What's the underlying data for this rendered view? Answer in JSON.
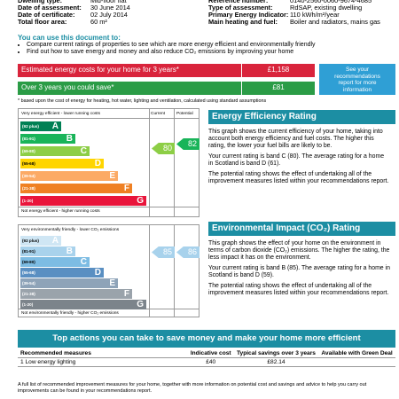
{
  "details": {
    "left": [
      {
        "label": "Dwelling type:",
        "value": "Mid-floor flat"
      },
      {
        "label": "Date of assessment:",
        "value": "30 June 2014"
      },
      {
        "label": "Date of certificate:",
        "value": "02 July 2014"
      },
      {
        "label": "Total floor area:",
        "value": "60 m²"
      }
    ],
    "right": [
      {
        "label": "Reference number:",
        "value": "0140-2560-0060-9674-4685"
      },
      {
        "label": "Type of assessment:",
        "value": "RdSAP, existing dwelling"
      },
      {
        "label": "Primary Energy Indicator:",
        "value": "110 kWh/m²/year"
      },
      {
        "label": "Main heating and fuel:",
        "value": "Boiler and radiators, mains gas"
      }
    ]
  },
  "uses": {
    "title": "You can use this document to:",
    "items": [
      "Compare current ratings of properties to see which are more energy efficient and environmentally friendly",
      "Find out how to save energy and money and also reduce CO₂ emissions by improving your home"
    ]
  },
  "costs": {
    "estimated": {
      "label": "Estimated energy costs for your home for 3 years*",
      "value": "£1,158"
    },
    "saving": {
      "label": "Over 3 years you could save*",
      "value": "£81"
    },
    "note": "See your recommendations report for more information",
    "footnote": "* based upon the cost of energy for heating, hot water, lighting and ventilation, calculated using standard assumptions"
  },
  "efficiency": {
    "chart": {
      "top": "Very energy efficient - lower running costs",
      "bottom": "Not energy efficient - higher running costs",
      "current_label": "Current",
      "potential_label": "Potential",
      "bands": [
        {
          "range": "(92 plus)",
          "letter": "A"
        },
        {
          "range": "(81-91)",
          "letter": "B"
        },
        {
          "range": "(69-80)",
          "letter": "C"
        },
        {
          "range": "(55-68)",
          "letter": "D"
        },
        {
          "range": "(39-54)",
          "letter": "E"
        },
        {
          "range": "(21-38)",
          "letter": "F"
        },
        {
          "range": "(1-20)",
          "letter": "G"
        }
      ],
      "current": 80,
      "potential": 82
    },
    "title": "Energy Efficiency Rating",
    "paragraphs": [
      "This graph shows the current efficiency of your home, taking into account both energy efficiency and fuel costs. The higher this rating, the lower your fuel bills are likely to be.",
      "Your current rating is band C (80). The average rating for a home in Scotland is band D (61).",
      "The potential rating shows the effect of undertaking all of the improvement measures listed within your recommendations report."
    ]
  },
  "impact": {
    "chart": {
      "top": "Very environmentally friendly - lower CO₂ emissions",
      "bottom": "Not environmentally friendly - higher CO₂ emissions",
      "bands": [
        {
          "range": "(92 plus)",
          "letter": "A"
        },
        {
          "range": "(81-91)",
          "letter": "B"
        },
        {
          "range": "(69-80)",
          "letter": "C"
        },
        {
          "range": "(55-68)",
          "letter": "D"
        },
        {
          "range": "(39-54)",
          "letter": "E"
        },
        {
          "range": "(21-38)",
          "letter": "F"
        },
        {
          "range": "(1-20)",
          "letter": "G"
        }
      ],
      "current": 85,
      "potential": 86
    },
    "title": "Environmental Impact (CO₂) Rating",
    "paragraphs": [
      "This graph shows the effect of your home on the environment in terms of carbon dioxide (CO₂) emissions. The higher the rating, the less impact it has on the environment.",
      "Your current rating is band B (85). The average rating for a home in Scotland is band D (59).",
      "The potential rating shows the effect of undertaking all of the improvement measures listed within your recommendations report."
    ]
  },
  "actions": {
    "title": "Top actions you can take to save money and make your home more efficient",
    "table": {
      "header": [
        "Recommended measures",
        "Indicative cost",
        "Typical savings over 3 years",
        "Available with Green Deal"
      ],
      "rows": [
        [
          "1 Low energy lighting",
          "£40",
          "£82.14"
        ]
      ]
    }
  },
  "footer": "A full list of recommended improvement measures for your home, together with more information on potential cost and savings and advice to help you carry out improvements can be found in your recommendations report."
}
